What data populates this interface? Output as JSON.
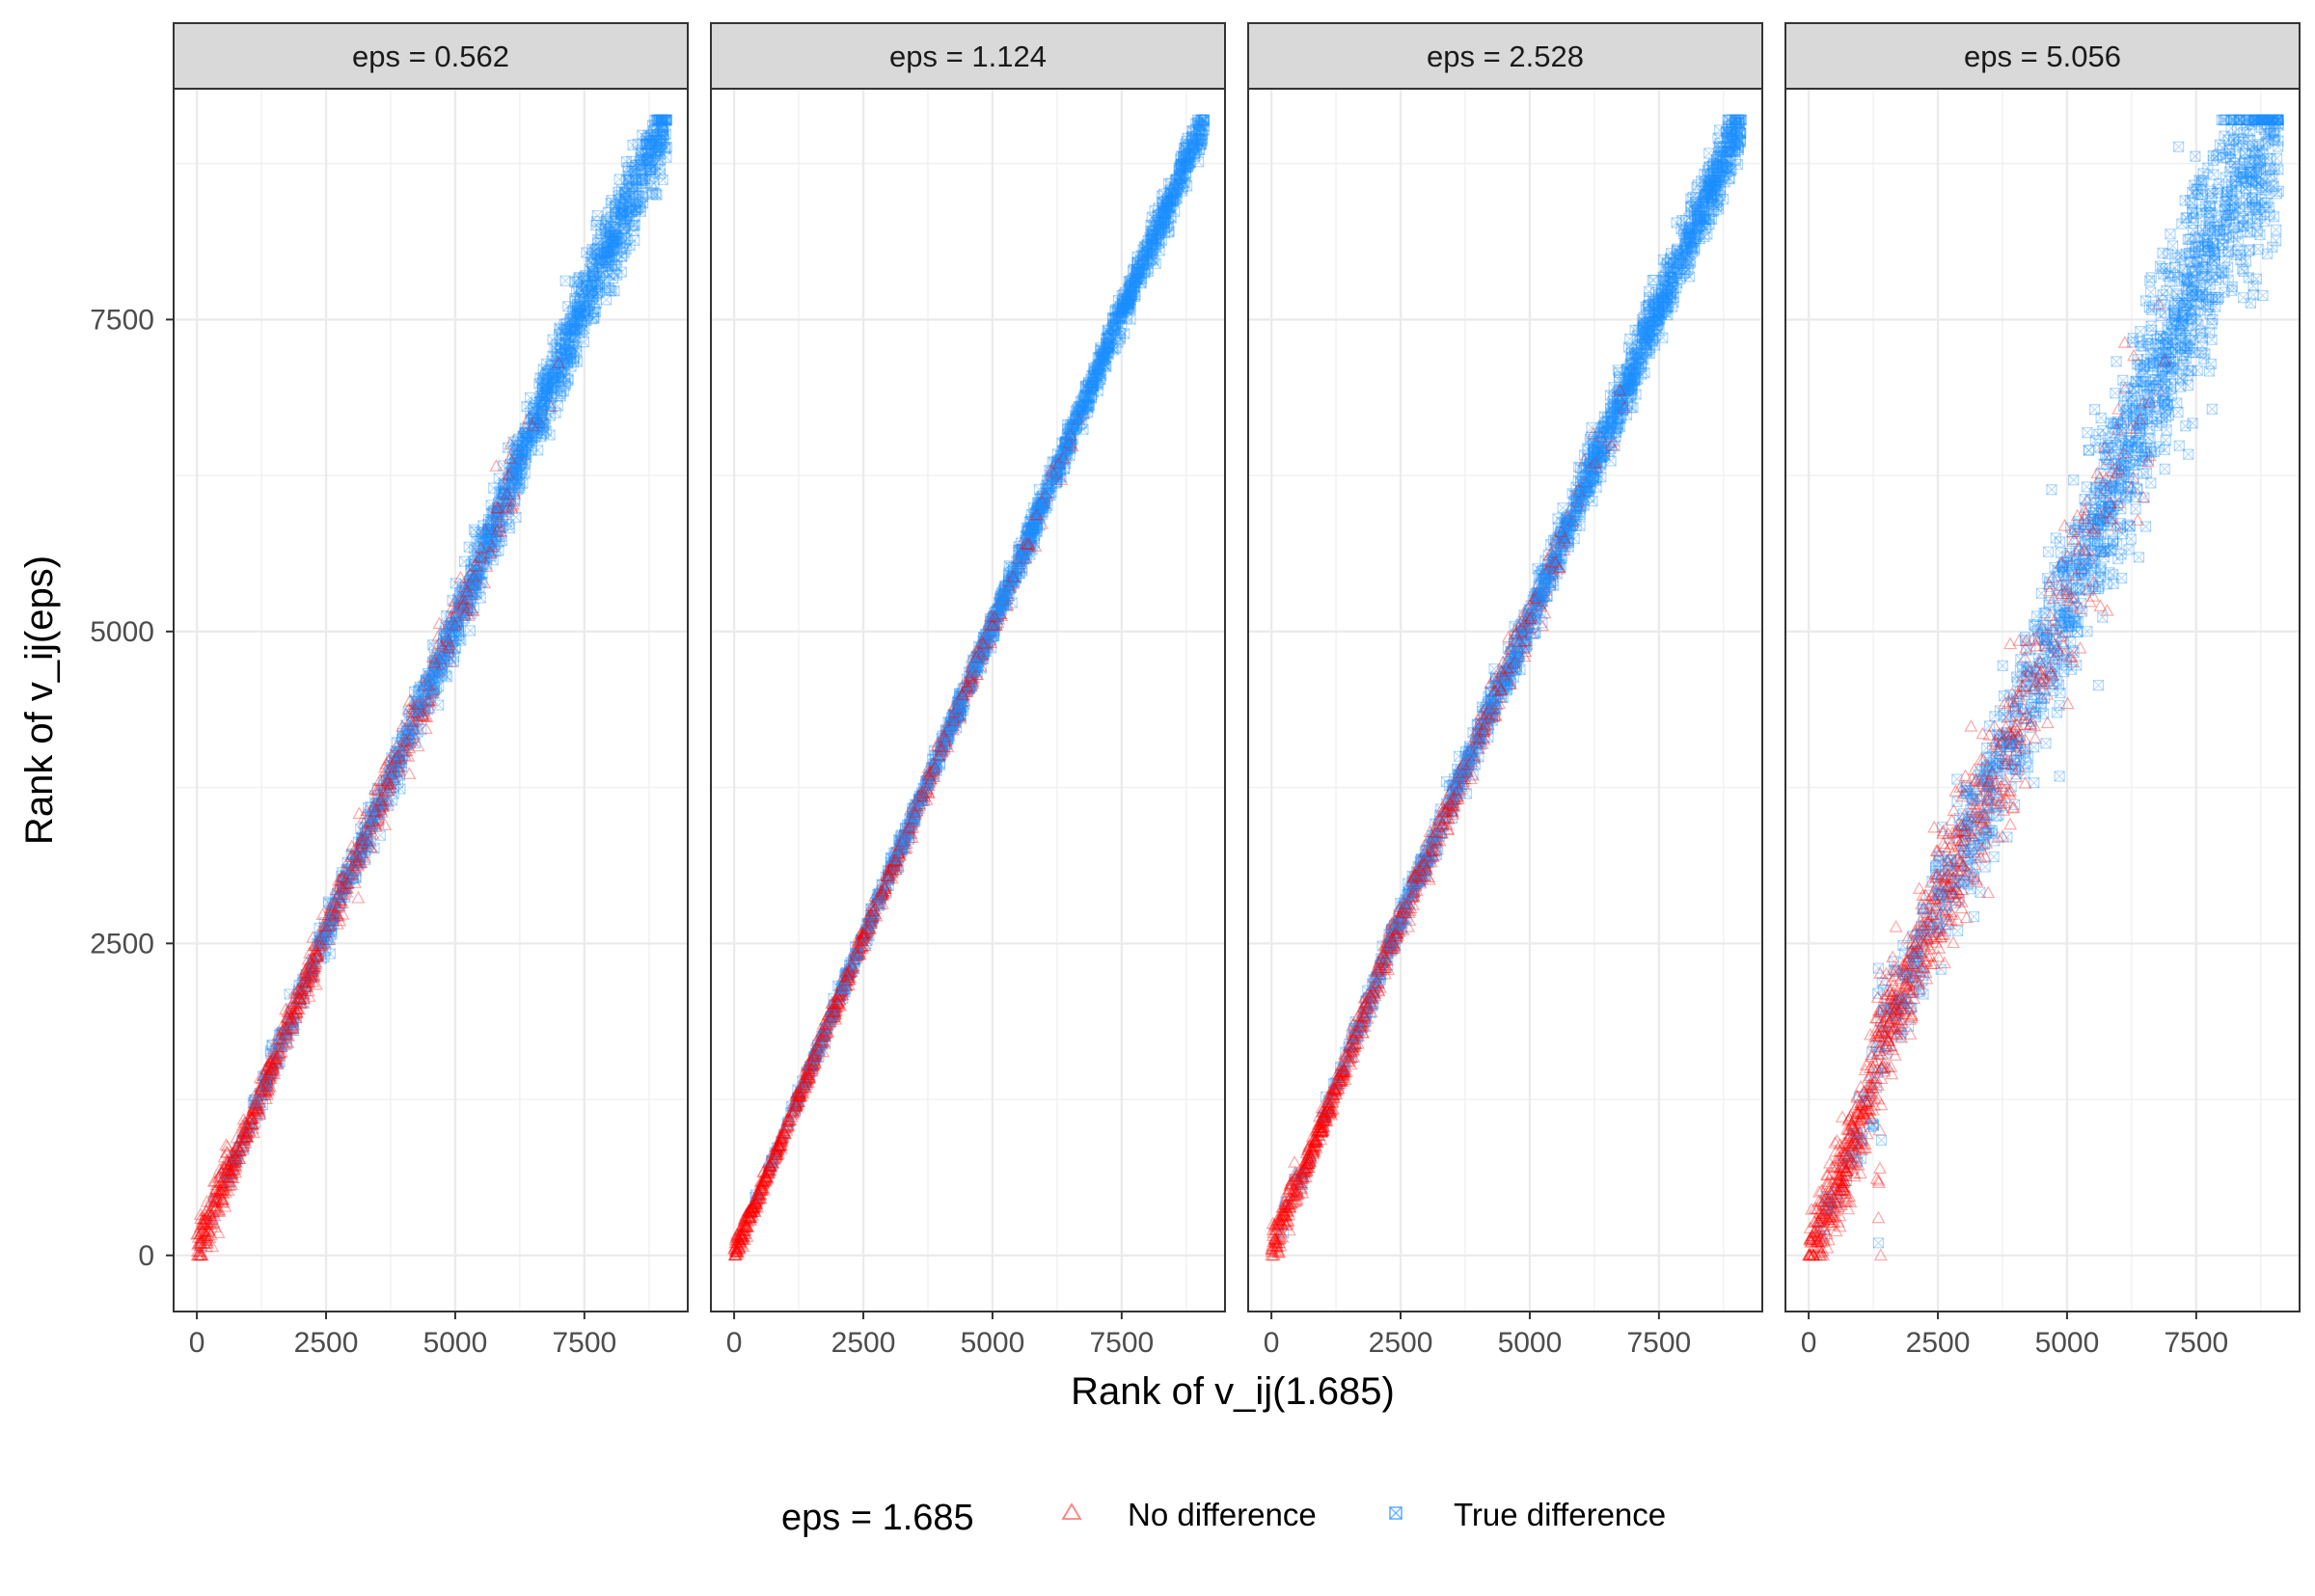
{
  "chart_data": {
    "type": "scatter",
    "facet_strip_labels": [
      "eps = 0.562",
      "eps = 1.124",
      "eps = 2.528",
      "eps = 5.056"
    ],
    "xlabel": "Rank of v_ij(1.685)",
    "ylabel": "Rank of v_ij(eps)",
    "xlim": [
      -450,
      9500
    ],
    "ylim": [
      -450,
      9350
    ],
    "x_ticks": [
      0,
      2500,
      5000,
      7500
    ],
    "x_tick_labels": [
      "0",
      "2500",
      "5000",
      "7500"
    ],
    "y_ticks": [
      0,
      2500,
      5000,
      7500
    ],
    "y_tick_labels": [
      "0",
      "2500",
      "5000",
      "7500"
    ],
    "grid": true,
    "legend": {
      "title": "eps = 1.685",
      "position": "bottom",
      "entries": [
        {
          "label": "No difference",
          "marker": "triangle-open",
          "color": "#ff0000"
        },
        {
          "label": "True difference",
          "marker": "square-x",
          "color": "#1e90ff"
        }
      ]
    },
    "colors": {
      "no_difference": "#ff0000",
      "true_difference": "#1e90ff"
    },
    "series": [
      {
        "name": "No difference",
        "marker": "triangle-open",
        "color": "#ff0000"
      },
      {
        "name": "True difference",
        "marker": "square-x",
        "color": "#1e90ff"
      }
    ],
    "panels": [
      {
        "strip": "eps = 0.562",
        "trend": [
          [
            0,
            0
          ],
          [
            2500,
            2600
          ],
          [
            5000,
            5050
          ],
          [
            7500,
            7650
          ],
          [
            9100,
            9100
          ]
        ],
        "spread": 120,
        "low_cluster": {
          "x_max": 600,
          "y_max": 300
        },
        "points_no_difference": [
          [
            30,
            0
          ],
          [
            80,
            120
          ],
          [
            150,
            260
          ],
          [
            300,
            70
          ],
          [
            420,
            180
          ],
          [
            500,
            450
          ],
          [
            700,
            620
          ],
          [
            900,
            900
          ],
          [
            1200,
            1150
          ],
          [
            1600,
            1620
          ],
          [
            2000,
            2050
          ],
          [
            2400,
            2500
          ],
          [
            2800,
            2950
          ],
          [
            3200,
            3300
          ],
          [
            3700,
            3800
          ],
          [
            4200,
            4350
          ],
          [
            4600,
            4750
          ],
          [
            5000,
            5050
          ],
          [
            5500,
            5600
          ],
          [
            6000,
            6100
          ],
          [
            6500,
            6650
          ],
          [
            7000,
            7150
          ]
        ],
        "points_true_difference": [
          [
            2600,
            2700
          ],
          [
            3100,
            3150
          ],
          [
            3600,
            3700
          ],
          [
            4100,
            4200
          ],
          [
            4700,
            4800
          ],
          [
            5200,
            5250
          ],
          [
            5800,
            5900
          ],
          [
            6300,
            6450
          ],
          [
            6800,
            6950
          ],
          [
            7300,
            7450
          ],
          [
            7800,
            7950
          ],
          [
            8200,
            8300
          ],
          [
            8600,
            8650
          ],
          [
            9000,
            9050
          ]
        ]
      },
      {
        "strip": "eps = 1.124",
        "trend": [
          [
            0,
            0
          ],
          [
            2500,
            2550
          ],
          [
            5000,
            5050
          ],
          [
            7500,
            7550
          ],
          [
            9100,
            9100
          ]
        ],
        "spread": 60,
        "low_cluster": {
          "x_max": 300,
          "y_max": 120
        },
        "points_no_difference": [
          [
            20,
            0
          ],
          [
            100,
            60
          ],
          [
            250,
            150
          ],
          [
            500,
            480
          ],
          [
            800,
            800
          ],
          [
            1200,
            1200
          ],
          [
            1600,
            1620
          ],
          [
            2000,
            2030
          ],
          [
            2500,
            2550
          ],
          [
            3000,
            3040
          ],
          [
            3500,
            3550
          ],
          [
            4000,
            4050
          ],
          [
            4500,
            4560
          ],
          [
            5000,
            5050
          ]
        ],
        "points_true_difference": [
          [
            3000,
            3050
          ],
          [
            4000,
            4060
          ],
          [
            5000,
            5060
          ],
          [
            5500,
            5560
          ],
          [
            6000,
            6060
          ],
          [
            6500,
            6560
          ],
          [
            7000,
            7060
          ],
          [
            7500,
            7560
          ],
          [
            8000,
            8050
          ],
          [
            8500,
            8530
          ],
          [
            9000,
            9050
          ]
        ]
      },
      {
        "strip": "eps = 2.528",
        "trend": [
          [
            0,
            0
          ],
          [
            2500,
            2700
          ],
          [
            5000,
            5100
          ],
          [
            7500,
            7600
          ],
          [
            9100,
            9100
          ]
        ],
        "spread": 100,
        "low_cluster": {
          "x_max": 500,
          "y_max": 250
        },
        "points_no_difference": [
          [
            30,
            0
          ],
          [
            150,
            100
          ],
          [
            350,
            200
          ],
          [
            600,
            500
          ],
          [
            1000,
            1000
          ],
          [
            1500,
            1550
          ],
          [
            2000,
            2100
          ],
          [
            2500,
            2700
          ],
          [
            3000,
            3200
          ],
          [
            3500,
            3650
          ],
          [
            4000,
            4250
          ],
          [
            4500,
            4650
          ],
          [
            5000,
            5100
          ],
          [
            5500,
            5550
          ]
        ],
        "points_true_difference": [
          [
            3000,
            3150
          ],
          [
            3800,
            3950
          ],
          [
            4500,
            4600
          ],
          [
            5200,
            5300
          ],
          [
            6000,
            6100
          ],
          [
            6500,
            6600
          ],
          [
            7000,
            7100
          ],
          [
            7500,
            7600
          ],
          [
            8000,
            8050
          ],
          [
            8500,
            8500
          ],
          [
            9000,
            9050
          ]
        ]
      },
      {
        "strip": "eps = 5.056",
        "trend": [
          [
            0,
            0
          ],
          [
            1050,
            1050
          ],
          [
            1300,
            1500
          ],
          [
            1400,
            1700
          ],
          [
            2500,
            2800
          ],
          [
            4000,
            4200
          ],
          [
            5000,
            5200
          ],
          [
            6000,
            6300
          ],
          [
            7000,
            7300
          ],
          [
            8000,
            8300
          ],
          [
            9100,
            9100
          ]
        ],
        "spread": 350,
        "gap_column": {
          "x": 1350,
          "y_min": 0,
          "y_max": 2300
        },
        "points_no_difference": [
          [
            0,
            0
          ],
          [
            300,
            300
          ],
          [
            600,
            600
          ],
          [
            900,
            900
          ],
          [
            1300,
            1800
          ],
          [
            1300,
            1900
          ],
          [
            1350,
            300
          ],
          [
            1350,
            600
          ],
          [
            2000,
            2500
          ],
          [
            2500,
            2600
          ],
          [
            3000,
            3400
          ],
          [
            3500,
            3800
          ],
          [
            3900,
            4900
          ],
          [
            4500,
            4600
          ],
          [
            5000,
            5300
          ],
          [
            5500,
            5800
          ],
          [
            6000,
            6300
          ]
        ],
        "points_true_difference": [
          [
            1350,
            100
          ],
          [
            1350,
            2300
          ],
          [
            2500,
            2900
          ],
          [
            3000,
            3000
          ],
          [
            3500,
            3700
          ],
          [
            4000,
            3900
          ],
          [
            4500,
            4400
          ],
          [
            5000,
            5600
          ],
          [
            5500,
            5900
          ],
          [
            6000,
            6300
          ],
          [
            6500,
            6900
          ],
          [
            7000,
            7100
          ],
          [
            7500,
            7700
          ],
          [
            8000,
            8100
          ],
          [
            8500,
            8600
          ],
          [
            9000,
            9000
          ]
        ]
      }
    ]
  }
}
